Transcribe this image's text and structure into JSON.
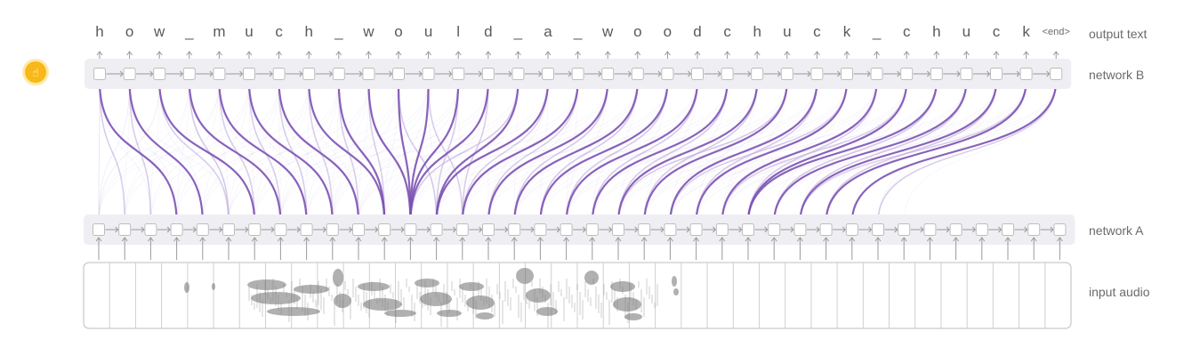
{
  "output_chars": [
    "h",
    "o",
    "w",
    "_",
    "m",
    "u",
    "c",
    "h",
    "_",
    "w",
    "o",
    "u",
    "l",
    "d",
    "_",
    "a",
    "_",
    "w",
    "o",
    "o",
    "d",
    "c",
    "h",
    "u",
    "c",
    "k",
    "_",
    "c",
    "h",
    "u",
    "c",
    "k"
  ],
  "end_token": "<end>",
  "labels": {
    "output_text": "output text",
    "network_b": "network B",
    "network_a": "network A",
    "input_audio": "input audio"
  },
  "network_b_steps": 33,
  "network_a_steps": 38,
  "audio_segments": 38,
  "attention": {
    "strong": [
      [
        0,
        3
      ],
      [
        1,
        4
      ],
      [
        2,
        6
      ],
      [
        3,
        7
      ],
      [
        4,
        8
      ],
      [
        5,
        9
      ],
      [
        6,
        10
      ],
      [
        7,
        11
      ],
      [
        8,
        11
      ],
      [
        9,
        12
      ],
      [
        10,
        12
      ],
      [
        11,
        12
      ],
      [
        12,
        12
      ],
      [
        13,
        12
      ],
      [
        14,
        13
      ],
      [
        15,
        13
      ],
      [
        16,
        14
      ],
      [
        17,
        15
      ],
      [
        18,
        16
      ],
      [
        19,
        17
      ],
      [
        20,
        18
      ],
      [
        21,
        19
      ],
      [
        22,
        20
      ],
      [
        23,
        21
      ],
      [
        24,
        22
      ],
      [
        25,
        23
      ],
      [
        26,
        24
      ],
      [
        27,
        25
      ],
      [
        28,
        25
      ],
      [
        29,
        26
      ],
      [
        30,
        27
      ],
      [
        31,
        28
      ],
      [
        32,
        29
      ]
    ],
    "faint": [
      [
        0,
        1
      ],
      [
        1,
        2
      ],
      [
        2,
        5
      ],
      [
        3,
        5
      ],
      [
        4,
        6
      ],
      [
        5,
        7
      ],
      [
        6,
        8
      ],
      [
        7,
        9
      ],
      [
        8,
        10
      ],
      [
        9,
        11
      ],
      [
        10,
        13
      ],
      [
        11,
        14
      ],
      [
        12,
        13
      ],
      [
        13,
        14
      ],
      [
        14,
        12
      ],
      [
        15,
        14
      ],
      [
        16,
        15
      ],
      [
        17,
        16
      ],
      [
        18,
        17
      ],
      [
        19,
        18
      ],
      [
        20,
        19
      ],
      [
        21,
        20
      ],
      [
        22,
        21
      ],
      [
        23,
        20
      ],
      [
        24,
        23
      ],
      [
        25,
        22
      ],
      [
        26,
        25
      ],
      [
        27,
        24
      ],
      [
        28,
        26
      ],
      [
        29,
        27
      ],
      [
        30,
        28
      ],
      [
        31,
        27
      ],
      [
        32,
        30
      ]
    ]
  },
  "colors": {
    "attention": "#7b52b4",
    "attention_faint": "#b9a6d8",
    "badge": "#f7b818",
    "badge_ring": "#fde9a6"
  },
  "icons": {
    "badge": "hand-pointer-icon"
  }
}
